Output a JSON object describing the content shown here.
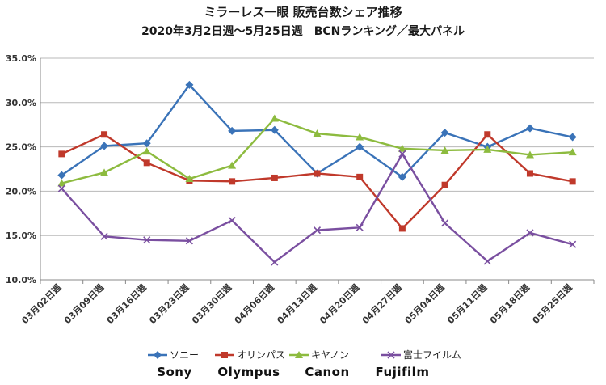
{
  "chart_data": {
    "type": "line",
    "title": "ミラーレス一眼 販売台数シェア推移",
    "subtitle": "2020年3月2日週～5月25日週　BCNランキング／最大パネル",
    "xlabel": "",
    "ylabel": "",
    "ylim": [
      10,
      35
    ],
    "y_ticks": [
      "10.0%",
      "15.0%",
      "20.0%",
      "25.0%",
      "30.0%",
      "35.0%"
    ],
    "y_tick_values": [
      10,
      15,
      20,
      25,
      30,
      35
    ],
    "categories": [
      "03月02日週",
      "03月09日週",
      "03月16日週",
      "03月23日週",
      "03月30日週",
      "04月06日週",
      "04月13日週",
      "04月20日週",
      "04月27日週",
      "05月04日週",
      "05月11日週",
      "05月18日週",
      "05月25日週"
    ],
    "grid": true,
    "legend_position": "bottom",
    "series": [
      {
        "name": "ソニー",
        "name_latin": "Sony",
        "color": "#3a73b8",
        "marker": "diamond",
        "values": [
          21.8,
          25.1,
          25.4,
          32.0,
          26.8,
          26.9,
          22.0,
          25.0,
          21.6,
          26.6,
          25.0,
          27.1,
          26.1
        ]
      },
      {
        "name": "オリンパス",
        "name_latin": "Olympus",
        "color": "#c0392b",
        "marker": "square",
        "values": [
          24.2,
          26.4,
          23.2,
          21.2,
          21.1,
          21.5,
          22.0,
          21.6,
          15.8,
          20.7,
          26.4,
          22.0,
          21.1
        ]
      },
      {
        "name": "キヤノン",
        "name_latin": "Canon",
        "color": "#8dbb3f",
        "marker": "triangle",
        "values": [
          20.9,
          22.1,
          24.5,
          21.4,
          22.9,
          28.2,
          26.5,
          26.1,
          24.8,
          24.6,
          24.7,
          24.1,
          24.4
        ]
      },
      {
        "name": "富士フイルム",
        "name_latin": "Fujifilm",
        "color": "#7a4fa0",
        "marker": "x",
        "values": [
          20.3,
          14.9,
          14.5,
          14.4,
          16.7,
          12.0,
          15.6,
          15.9,
          24.2,
          16.4,
          12.1,
          15.3,
          14.0
        ]
      }
    ]
  }
}
